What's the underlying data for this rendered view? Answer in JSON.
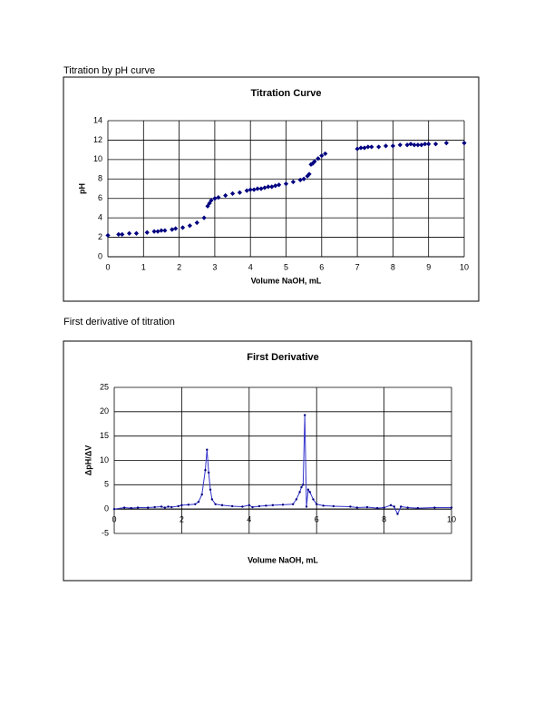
{
  "document": {
    "caption_1": "Titration by pH curve",
    "caption_2": "First derivative of titration"
  },
  "chart_data": [
    {
      "type": "scatter",
      "title": "Titration Curve",
      "x_label": "Volume NaOH, mL",
      "y_label": "pH",
      "color": "#000080",
      "grid": true,
      "xlim": [
        0,
        10
      ],
      "ylim": [
        0,
        14
      ],
      "xticks": [
        0,
        1,
        2,
        3,
        4,
        5,
        6,
        7,
        8,
        9,
        10
      ],
      "yticks": [
        0,
        2,
        4,
        6,
        8,
        10,
        12,
        14
      ],
      "x": [
        0,
        0.3,
        0.4,
        0.6,
        0.8,
        1.1,
        1.3,
        1.4,
        1.5,
        1.6,
        1.8,
        1.9,
        2.1,
        2.3,
        2.5,
        2.7,
        2.8,
        2.85,
        2.9,
        3.0,
        3.1,
        3.3,
        3.5,
        3.7,
        3.9,
        4.0,
        4.1,
        4.2,
        4.3,
        4.4,
        4.5,
        4.6,
        4.7,
        4.8,
        5.0,
        5.2,
        5.4,
        5.5,
        5.6,
        5.65,
        5.7,
        5.75,
        5.8,
        5.9,
        6.0,
        6.1,
        7.0,
        7.1,
        7.2,
        7.3,
        7.4,
        7.6,
        7.8,
        8.0,
        8.2,
        8.4,
        8.5,
        8.6,
        8.7,
        8.8,
        8.9,
        9.0,
        9.2,
        9.5,
        10
      ],
      "values": [
        2.2,
        2.3,
        2.3,
        2.4,
        2.4,
        2.5,
        2.6,
        2.6,
        2.7,
        2.7,
        2.8,
        2.9,
        3.0,
        3.2,
        3.5,
        4.0,
        5.2,
        5.5,
        5.8,
        6.0,
        6.1,
        6.3,
        6.5,
        6.6,
        6.8,
        6.9,
        6.9,
        7.0,
        7.0,
        7.1,
        7.2,
        7.2,
        7.3,
        7.4,
        7.5,
        7.7,
        7.9,
        8.0,
        8.3,
        8.5,
        9.5,
        9.6,
        9.8,
        10.1,
        10.4,
        10.6,
        11.1,
        11.2,
        11.2,
        11.3,
        11.3,
        11.3,
        11.4,
        11.4,
        11.5,
        11.5,
        11.6,
        11.5,
        11.5,
        11.5,
        11.6,
        11.6,
        11.6,
        11.7,
        11.7
      ]
    },
    {
      "type": "line",
      "title": "First Derivative",
      "x_label": "Volume NaOH, mL",
      "y_label": "ΔpH/ΔV",
      "color": "#3333cc",
      "marker_color": "#000080",
      "grid": true,
      "xlim": [
        0,
        10
      ],
      "ylim": [
        -5,
        25
      ],
      "xticks": [
        0,
        2,
        4,
        6,
        8,
        10
      ],
      "yticks": [
        -5,
        0,
        5,
        10,
        15,
        20,
        25
      ],
      "x": [
        0,
        0.3,
        0.5,
        0.7,
        1.0,
        1.2,
        1.4,
        1.5,
        1.6,
        1.7,
        1.9,
        2.0,
        2.2,
        2.4,
        2.5,
        2.6,
        2.7,
        2.75,
        2.8,
        2.85,
        2.9,
        3.0,
        3.2,
        3.5,
        3.8,
        4.0,
        4.1,
        4.3,
        4.5,
        4.7,
        5.0,
        5.3,
        5.4,
        5.5,
        5.55,
        5.6,
        5.65,
        5.7,
        5.75,
        5.8,
        5.9,
        6.0,
        6.2,
        6.5,
        7.0,
        7.2,
        7.5,
        7.8,
        8.0,
        8.2,
        8.3,
        8.4,
        8.5,
        8.7,
        9.0,
        9.5,
        10
      ],
      "values": [
        0,
        0.3,
        0.2,
        0.3,
        0.3,
        0.4,
        0.5,
        0.3,
        0.5,
        0.4,
        0.6,
        0.8,
        0.9,
        1.0,
        1.5,
        3,
        8,
        12.2,
        7.5,
        4,
        2,
        1,
        0.8,
        0.6,
        0.5,
        0.8,
        0.4,
        0.6,
        0.7,
        0.8,
        0.9,
        1.0,
        2,
        3.5,
        4.5,
        5,
        19.3,
        0.5,
        4,
        3.5,
        2,
        1,
        0.7,
        0.6,
        0.5,
        0.3,
        0.4,
        0.2,
        0.3,
        0.8,
        0.5,
        -1,
        0.5,
        0.3,
        0.2,
        0.3,
        0.3
      ]
    }
  ]
}
